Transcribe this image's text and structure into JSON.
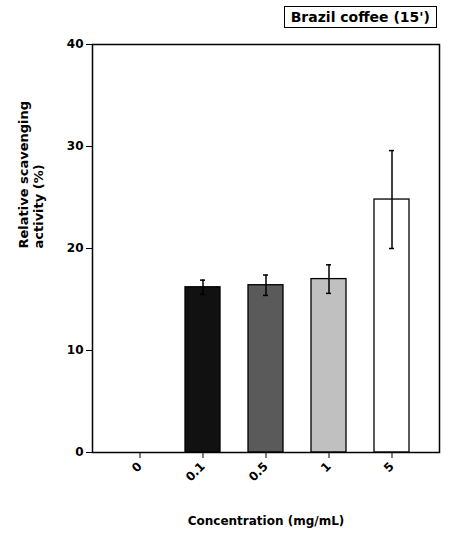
{
  "chart_data": {
    "type": "bar",
    "title": "Brazil coffee (15')",
    "categories": [
      "0",
      "0.1",
      "0.5",
      "1",
      "5"
    ],
    "values": [
      0,
      16.2,
      16.4,
      17.0,
      24.8
    ],
    "errors": [
      0,
      0.7,
      1.0,
      1.4,
      4.8
    ],
    "colors": [
      "none",
      "#111111",
      "#5a5a5a",
      "#c0c0c0",
      "#ffffff"
    ],
    "xlabel": "Concentration (mg/mL)",
    "ylabel": "Relative scavenging\nactivity (%)",
    "ylim": [
      0,
      40
    ],
    "yticks": [
      0,
      10,
      20,
      30,
      40
    ],
    "grid": false
  }
}
